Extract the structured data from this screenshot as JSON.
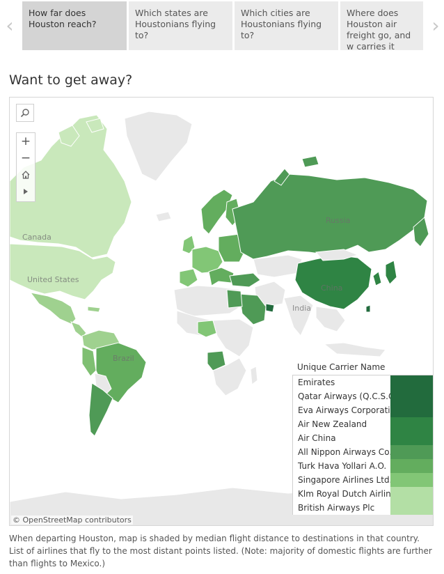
{
  "tabs": [
    {
      "label": "How far does Houston reach?",
      "active": true
    },
    {
      "label": "Which states are Houstonians flying to?",
      "active": false
    },
    {
      "label": "Which cities are Houstonians flying to?",
      "active": false
    },
    {
      "label": "Where does Houston air freight go, and w carries it there?",
      "active": false
    }
  ],
  "nav": {
    "prev_icon": "‹",
    "next_icon": "›"
  },
  "title": "Want to get away?",
  "map": {
    "labels": {
      "russia": "Russia",
      "canada": "Canada",
      "united_states": "United States",
      "china": "China",
      "india": "India",
      "brazil": "Brazil"
    },
    "attribution": "© OpenStreetMap contributors",
    "controls": {
      "search_icon": "search-icon",
      "zoom_in": "+",
      "zoom_out": "−",
      "home_icon": "home-icon",
      "expand_icon": "play-icon"
    },
    "colors": {
      "land_no_data": "#e8e8e8",
      "border": "#ffffff",
      "country_outline": "#555555"
    }
  },
  "legend": {
    "title": "Unique Carrier Name",
    "items": [
      {
        "name": "Emirates",
        "color": "#226b3d"
      },
      {
        "name": "Qatar Airways (Q.C.S.C)",
        "color": "#226b3d"
      },
      {
        "name": "Eva Airways Corporati..",
        "color": "#226b3d"
      },
      {
        "name": "Air New Zealand",
        "color": "#2f8444"
      },
      {
        "name": "Air China",
        "color": "#2f8444"
      },
      {
        "name": "All Nippon Airways Co.",
        "color": "#4f9a56"
      },
      {
        "name": "Turk Hava Yollari A.O.",
        "color": "#63ad5e"
      },
      {
        "name": "Singapore Airlines Ltd.",
        "color": "#82c676"
      },
      {
        "name": "Klm Royal Dutch Airlin..",
        "color": "#b3dfa5"
      },
      {
        "name": "British Airways Plc",
        "color": "#b3dfa5"
      }
    ]
  },
  "caption": "When departing Houston, map is shaded by median flight distance to destinations in that country. List of airlines that fly to the most distant points listed. (Note: majority of domestic flights are further than flights to Mexico.)"
}
